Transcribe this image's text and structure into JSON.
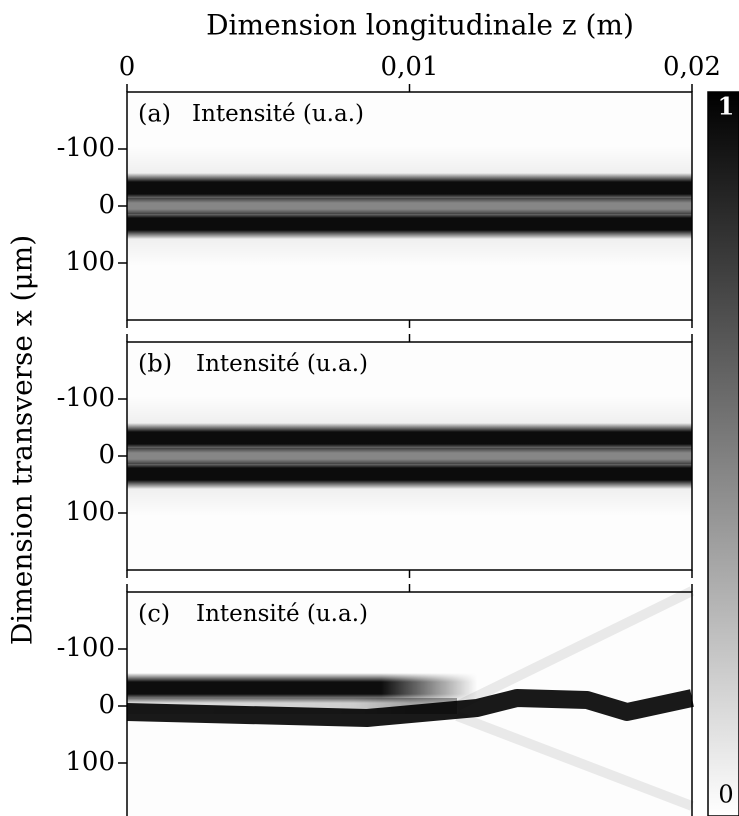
{
  "chart_data": [
    {
      "type": "image",
      "panel_label": "(a)",
      "title": "Intensité (u.a.)",
      "xlabel": "Dimension longitudinale z (m)",
      "ylabel": "Dimension transverse x (μm)",
      "xlim": [
        0,
        0.02
      ],
      "xticks": [
        0,
        {
          "value": 0.01,
          "label": "0,01"
        },
        {
          "value": 0.02,
          "label": "0,02"
        }
      ],
      "ylim": [
        -200,
        200
      ],
      "yticks": [
        -100,
        0,
        100
      ],
      "y_inverted": true
    },
    {
      "type": "image",
      "panel_label": "(b)",
      "title": "Intensité (u.a.)",
      "xlim": [
        0,
        0.02
      ],
      "ylim": [
        -200,
        200
      ],
      "yticks": [
        -100,
        0,
        100
      ],
      "y_inverted": true
    },
    {
      "type": "image",
      "panel_label": "(c)",
      "title": "Intensité (u.a.)",
      "xlim": [
        0,
        0.02
      ],
      "ylim": [
        -200,
        200
      ],
      "yticks": [
        -100,
        0,
        100
      ],
      "y_inverted": true
    },
    {
      "type": "colorbar",
      "lim": [
        0,
        1
      ],
      "ticks": [
        0,
        1
      ]
    }
  ]
}
